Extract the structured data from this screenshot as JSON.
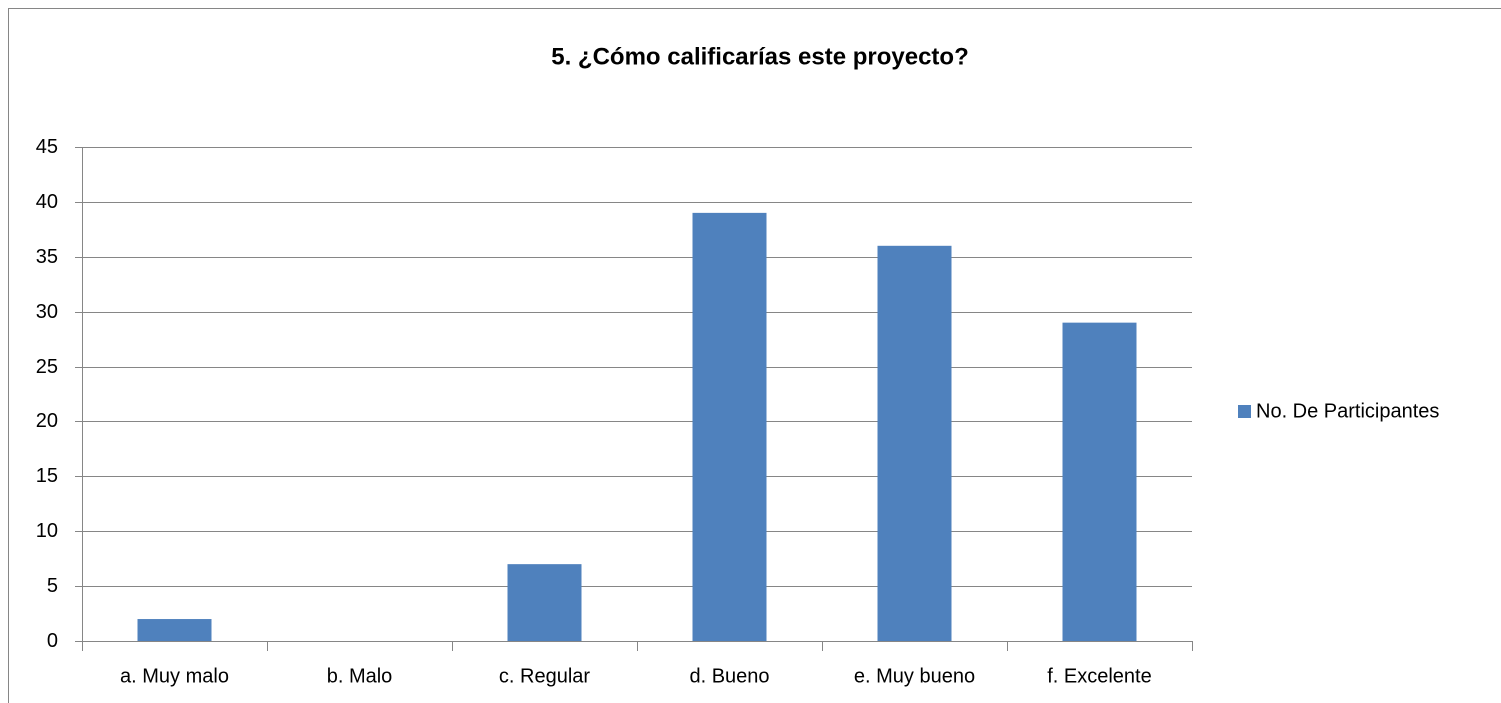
{
  "chart_data": {
    "type": "bar",
    "title": "5. ¿Cómo calificarías este proyecto?",
    "categories": [
      "a. Muy malo",
      "b. Malo",
      "c. Regular",
      "d. Bueno",
      "e. Muy bueno",
      "f. Excelente"
    ],
    "series": [
      {
        "name": "No. De Participantes",
        "color": "#4f81bd",
        "values": [
          2,
          0,
          7,
          39,
          36,
          29
        ]
      }
    ],
    "ylim": [
      0,
      45
    ],
    "yticks": [
      0,
      5,
      10,
      15,
      20,
      25,
      30,
      35,
      40,
      45
    ],
    "grid": true,
    "legend": "right"
  }
}
